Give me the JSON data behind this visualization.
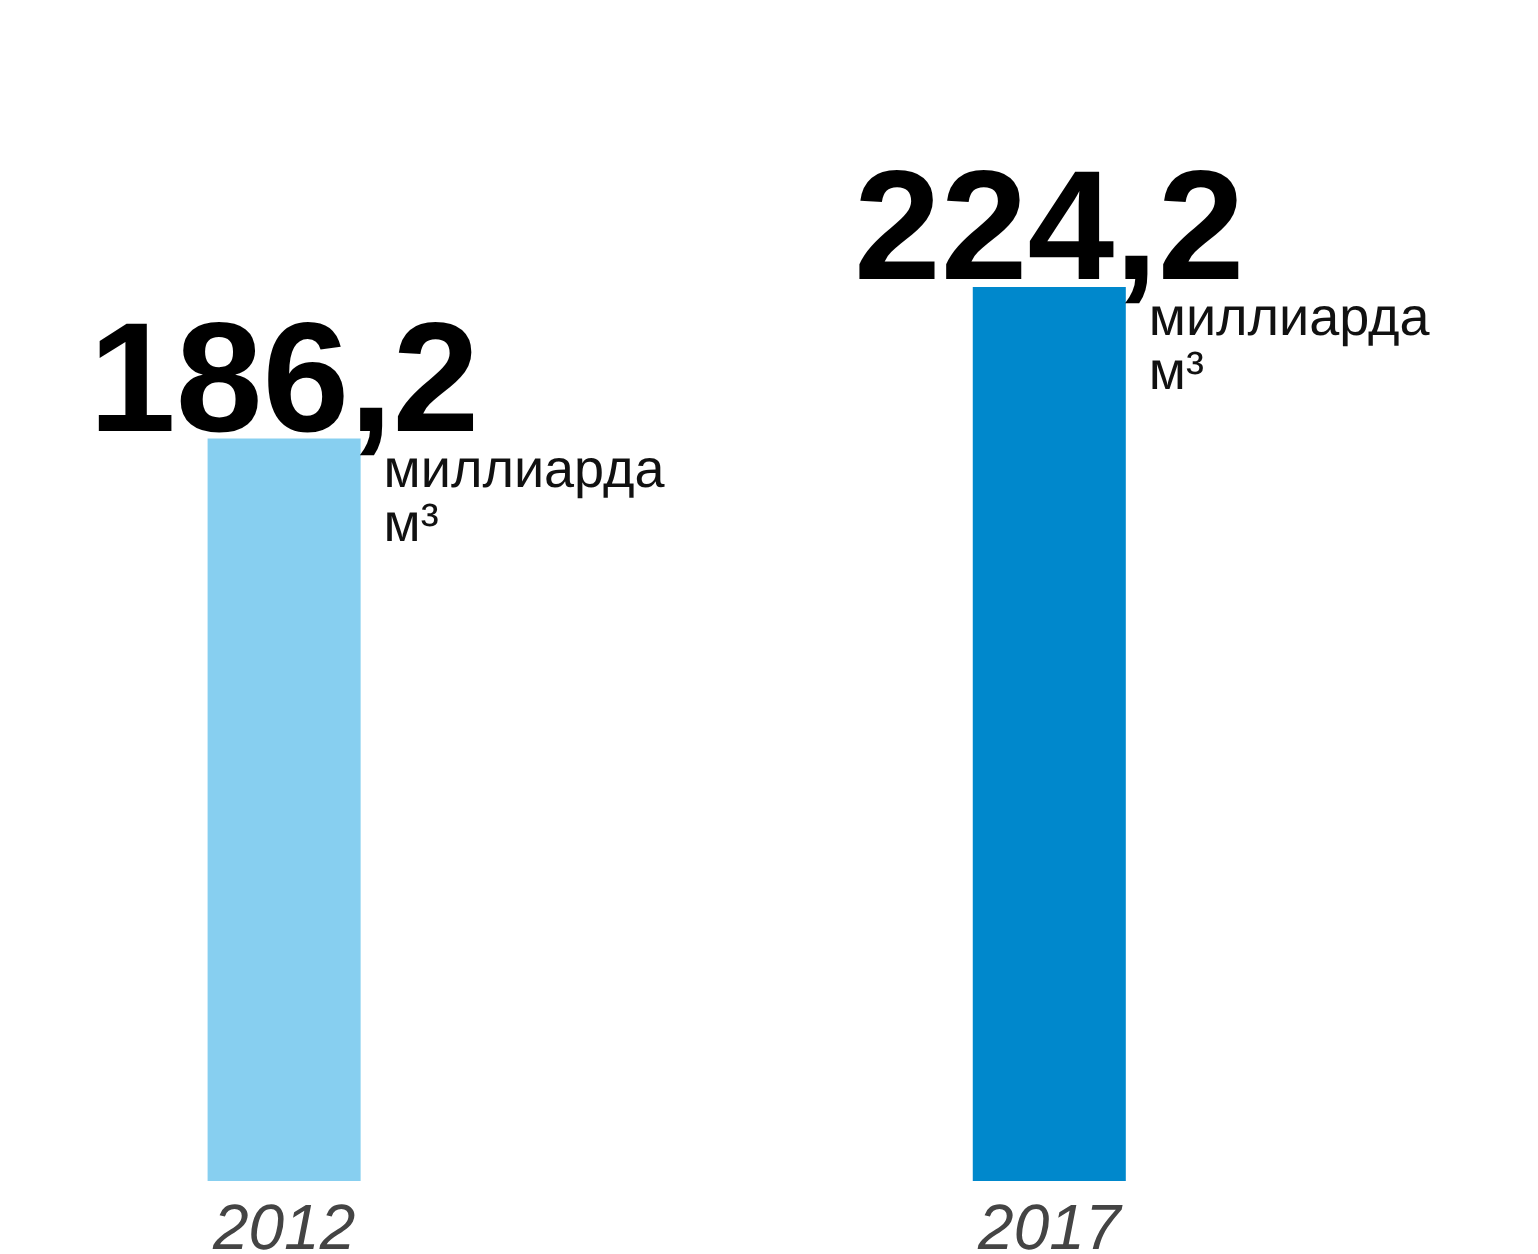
{
  "chart_data": {
    "type": "bar",
    "categories": [
      "2012",
      "2017"
    ],
    "values": [
      186.2,
      224.2
    ],
    "colors": [
      "#87cff0",
      "#0088cc"
    ],
    "value_labels": [
      "186,2",
      "224,2"
    ],
    "annotations": [
      {
        "text": "миллиарда м³",
        "x": "2012",
        "y": 186.2
      },
      {
        "text": "миллиарда м³",
        "x": "2017",
        "y": 224.2
      }
    ],
    "grid": false
  }
}
